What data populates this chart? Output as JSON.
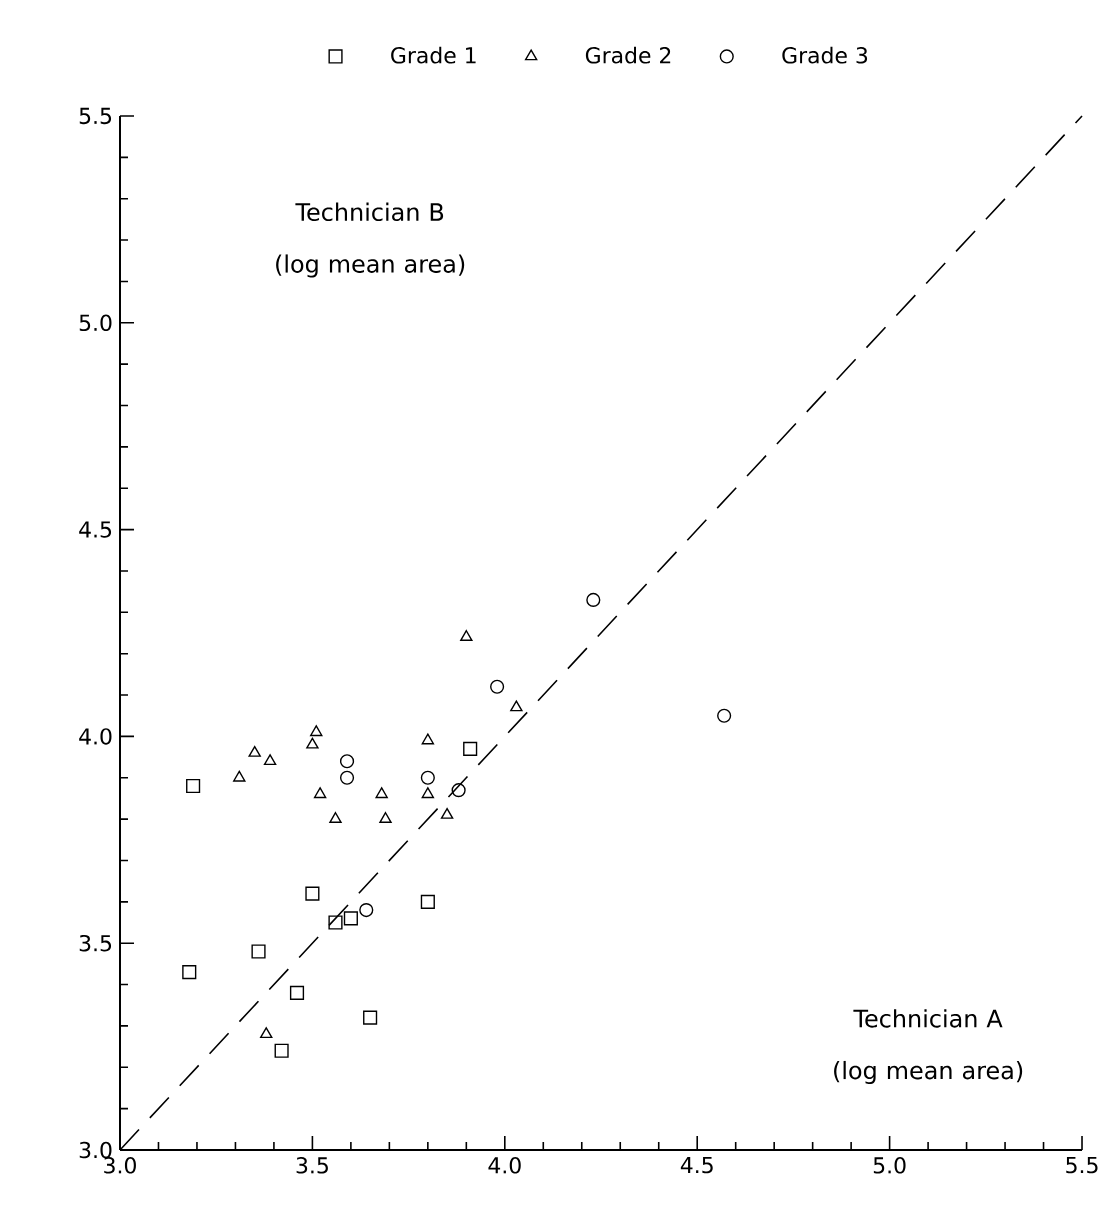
{
  "chart_data": {
    "type": "scatter",
    "xlabel": "Technician A (log mean area)",
    "ylabel": "Technician B (log mean area)",
    "xlim": [
      3.0,
      5.5
    ],
    "ylim": [
      3.0,
      5.5
    ],
    "xticks": [
      {
        "value": 3,
        "label": "3.0"
      },
      3.5,
      {
        "value": 4,
        "label": "4.0"
      },
      4.5,
      {
        "value": 5,
        "label": "5.0"
      },
      5.5
    ],
    "yticks": [
      {
        "value": 3,
        "label": "3.0"
      },
      3.5,
      {
        "value": 4,
        "label": "4.0"
      },
      4.5,
      {
        "value": 5,
        "label": "5.0"
      },
      5.5
    ],
    "grid": false,
    "legend": "top",
    "series": [
      {
        "name": "Grade 1",
        "color": "#000000",
        "marker": "square",
        "x": [
          3.18,
          3.19,
          3.36,
          3.42,
          3.46,
          3.5,
          3.56,
          3.6,
          3.65,
          3.8,
          3.91
        ],
        "values": [
          3.43,
          3.88,
          3.48,
          3.24,
          3.38,
          3.62,
          3.55,
          3.56,
          3.32,
          3.6,
          3.97
        ]
      },
      {
        "name": "Grade 2",
        "color": "#000000",
        "marker": "triangle",
        "x": [
          3.31,
          3.35,
          3.39,
          3.38,
          3.5,
          3.51,
          3.52,
          3.56,
          3.68,
          3.69,
          3.8,
          3.8,
          3.85,
          3.9,
          4.03
        ],
        "values": [
          3.9,
          3.96,
          3.94,
          3.28,
          3.98,
          4.01,
          3.86,
          3.8,
          3.86,
          3.8,
          3.99,
          3.86,
          3.81,
          4.24,
          4.07
        ]
      },
      {
        "name": "Grade 3",
        "color": "#000000",
        "marker": "circle",
        "x": [
          3.59,
          3.59,
          3.64,
          3.8,
          3.88,
          3.98,
          4.23,
          4.57
        ],
        "values": [
          3.94,
          3.9,
          3.58,
          3.9,
          3.87,
          4.12,
          4.33,
          4.05
        ]
      },
      {
        "type": "line",
        "color": "#000000",
        "line_style": "dashed",
        "marker": "none",
        "x": [
          3.0,
          5.5
        ],
        "values": [
          3.0,
          5.5
        ]
      }
    ]
  }
}
